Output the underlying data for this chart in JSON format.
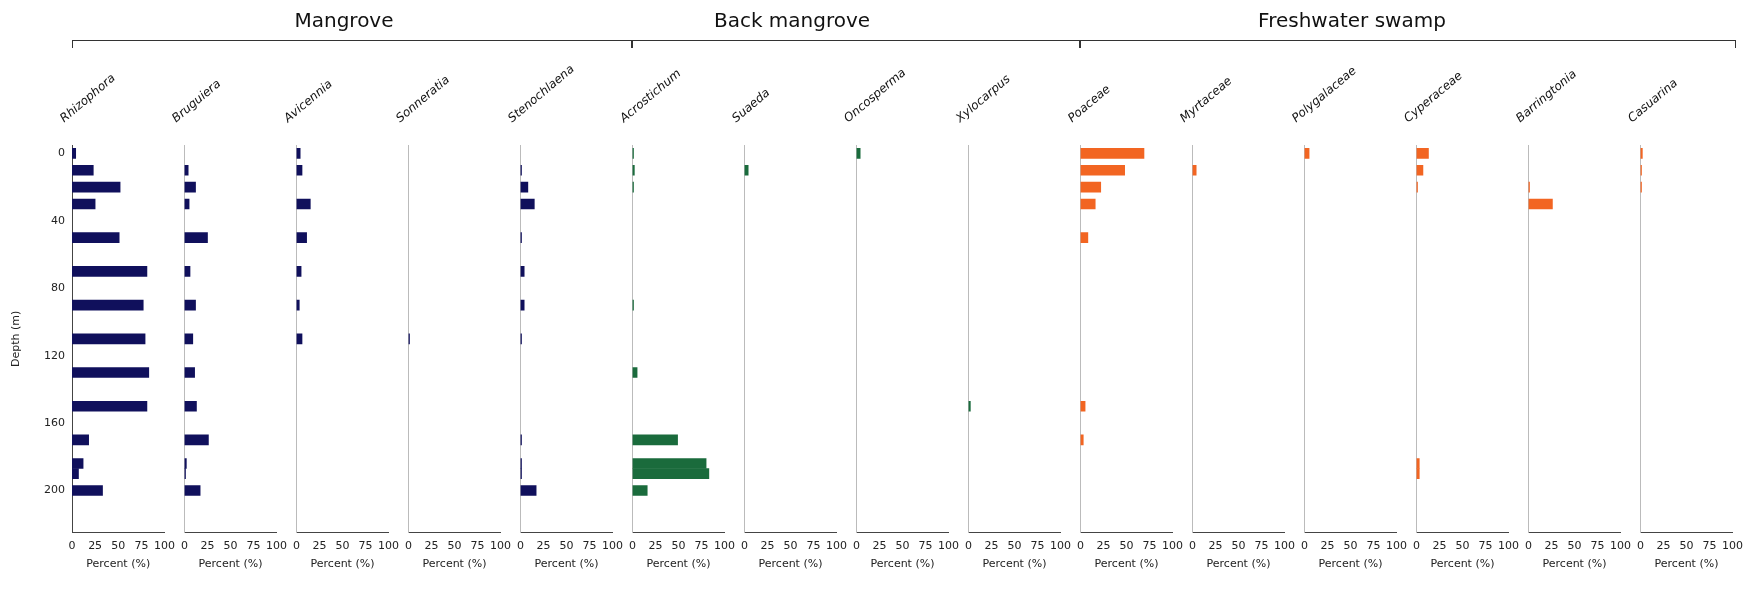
{
  "chart_data": [
    {
      "type": "bar",
      "orientation": "horizontal",
      "title": "Rhizophora",
      "xlabel": "Percent (%)",
      "ylabel": "Depth (m)",
      "x": [
        0,
        10,
        20,
        30,
        50,
        70,
        90,
        110,
        130,
        150,
        170,
        184,
        190,
        200
      ],
      "values": [
        4,
        23,
        52,
        25,
        51,
        81,
        77,
        79,
        83,
        81,
        18,
        12,
        7,
        33
      ],
      "color": "#10105c",
      "xlim": [
        0,
        100
      ],
      "xticks": [
        0,
        25,
        50,
        75,
        100
      ],
      "ylim": [
        225,
        -5
      ],
      "yticks": [
        0,
        40,
        80,
        120,
        160,
        200
      ]
    },
    {
      "type": "bar",
      "orientation": "horizontal",
      "title": "Bruguiera",
      "xlabel": "Percent (%)",
      "x": [
        10,
        20,
        30,
        50,
        70,
        90,
        110,
        130,
        150,
        170,
        184,
        190,
        200
      ],
      "values": [
        4,
        12,
        5,
        25,
        6,
        12,
        9,
        11,
        13,
        26,
        2,
        1,
        17
      ],
      "color": "#10105c",
      "xlim": [
        0,
        100
      ],
      "xticks": [
        0,
        25,
        50,
        75,
        100
      ],
      "ylim": [
        225,
        -5
      ],
      "yticks": [
        0,
        40,
        80,
        120,
        160,
        200
      ],
      "tick_labels": "x"
    },
    {
      "type": "bar",
      "orientation": "horizontal",
      "subtitle": "Mangrove",
      "title": "Avicennia",
      "xlabel": "Percent (%)",
      "x": [
        0,
        10,
        30,
        50,
        70,
        90,
        110
      ],
      "values": [
        4,
        6,
        15,
        11,
        5,
        3,
        6
      ],
      "color": "#10105c",
      "xlim": [
        0,
        100
      ],
      "xticks": [
        0,
        25,
        50,
        75,
        100
      ],
      "ylim": [
        225,
        -5
      ],
      "yticks": [
        0,
        40,
        80,
        120,
        160,
        200
      ],
      "tick_labels": "x"
    },
    {
      "type": "bar",
      "orientation": "horizontal",
      "title": "Sonneratia",
      "xlabel": "Percent (%)",
      "x": [
        110
      ],
      "values": [
        1
      ],
      "color": "#10105c",
      "xlim": [
        0,
        100
      ],
      "xticks": [
        0,
        25,
        50,
        75,
        100
      ],
      "ylim": [
        225,
        -5
      ],
      "yticks": [
        0,
        40,
        80,
        120,
        160,
        200
      ],
      "tick_labels": "x"
    },
    {
      "type": "bar",
      "orientation": "horizontal",
      "title": "Stenochlaena",
      "xlabel": "Percent (%)",
      "x": [
        10,
        20,
        30,
        50,
        70,
        90,
        110,
        170,
        184,
        190,
        200
      ],
      "values": [
        1,
        8,
        15,
        1,
        4,
        4,
        1,
        1,
        1,
        1,
        17
      ],
      "color": "#10105c",
      "xlim": [
        0,
        100
      ],
      "xticks": [
        0,
        25,
        50,
        75,
        100
      ],
      "ylim": [
        225,
        -5
      ],
      "yticks": [
        0,
        40,
        80,
        120,
        160,
        200
      ],
      "tick_labels": "x"
    },
    {
      "type": "bar",
      "orientation": "horizontal",
      "title": "Acrostichum",
      "xlabel": "Percent (%)",
      "x": [
        0,
        10,
        20,
        90,
        130,
        170,
        184,
        190,
        200
      ],
      "values": [
        1,
        2,
        1,
        1,
        5,
        49,
        80,
        83,
        16
      ],
      "color": "#1a6b3c",
      "xlim": [
        0,
        100
      ],
      "xticks": [
        0,
        25,
        50,
        75,
        100
      ],
      "ylim": [
        225,
        -5
      ],
      "yticks": [
        0,
        40,
        80,
        120,
        160,
        200
      ],
      "tick_labels": "x"
    },
    {
      "type": "bar",
      "orientation": "horizontal",
      "subtitle": "Back mangrove",
      "title": "Suaeda",
      "xlabel": "Percent (%)",
      "x": [
        10
      ],
      "values": [
        4
      ],
      "color": "#1a6b3c",
      "xlim": [
        0,
        100
      ],
      "xticks": [
        0,
        25,
        50,
        75,
        100
      ],
      "ylim": [
        225,
        -5
      ],
      "yticks": [
        0,
        40,
        80,
        120,
        160,
        200
      ],
      "tick_labels": "x"
    },
    {
      "type": "bar",
      "orientation": "horizontal",
      "title": "Oncosperma",
      "xlabel": "Percent (%)",
      "x": [
        0
      ],
      "values": [
        4
      ],
      "color": "#1a6b3c",
      "xlim": [
        0,
        100
      ],
      "xticks": [
        0,
        25,
        50,
        75,
        100
      ],
      "ylim": [
        225,
        -5
      ],
      "yticks": [
        0,
        40,
        80,
        120,
        160,
        200
      ],
      "tick_labels": "x"
    },
    {
      "type": "bar",
      "orientation": "horizontal",
      "title": "Xylocarpus",
      "xlabel": "Percent (%)",
      "x": [
        150
      ],
      "values": [
        2
      ],
      "color": "#1a6b3c",
      "xlim": [
        0,
        100
      ],
      "xticks": [
        0,
        25,
        50,
        75,
        100
      ],
      "ylim": [
        225,
        -5
      ],
      "yticks": [
        0,
        40,
        80,
        120,
        160,
        200
      ],
      "tick_labels": "x"
    },
    {
      "type": "bar",
      "orientation": "horizontal",
      "title": "Poaceae",
      "xlabel": "Percent (%)",
      "x": [
        0,
        10,
        20,
        30,
        50,
        150,
        170
      ],
      "values": [
        69,
        48,
        22,
        16,
        8,
        5,
        3
      ],
      "color": "#f26522",
      "xlim": [
        0,
        100
      ],
      "xticks": [
        0,
        25,
        50,
        75,
        100
      ],
      "ylim": [
        225,
        -5
      ],
      "yticks": [
        0,
        40,
        80,
        120,
        160,
        200
      ],
      "tick_labels": "x"
    },
    {
      "type": "bar",
      "orientation": "horizontal",
      "title": "Myrtaceae",
      "xlabel": "Percent (%)",
      "x": [
        10
      ],
      "values": [
        4
      ],
      "color": "#f26522",
      "xlim": [
        0,
        100
      ],
      "xticks": [
        0,
        25,
        50,
        75,
        100
      ],
      "ylim": [
        225,
        -5
      ],
      "yticks": [
        0,
        40,
        80,
        120,
        160,
        200
      ],
      "tick_labels": "x"
    },
    {
      "type": "bar",
      "orientation": "horizontal",
      "subtitle": "Freshwater swamp",
      "title": "Polygalaceae",
      "xlabel": "Percent (%)",
      "x": [
        0
      ],
      "values": [
        5
      ],
      "color": "#f26522",
      "xlim": [
        0,
        100
      ],
      "xticks": [
        0,
        25,
        50,
        75,
        100
      ],
      "ylim": [
        225,
        -5
      ],
      "yticks": [
        0,
        40,
        80,
        120,
        160,
        200
      ],
      "tick_labels": "x"
    },
    {
      "type": "bar",
      "orientation": "horizontal",
      "title": "Cyperaceae",
      "xlabel": "Percent (%)",
      "x": [
        0,
        10,
        20,
        184,
        190
      ],
      "values": [
        13,
        7,
        1,
        3,
        3
      ],
      "color": "#f26522",
      "xlim": [
        0,
        100
      ],
      "xticks": [
        0,
        25,
        50,
        75,
        100
      ],
      "ylim": [
        225,
        -5
      ],
      "yticks": [
        0,
        40,
        80,
        120,
        160,
        200
      ],
      "tick_labels": "x"
    },
    {
      "type": "bar",
      "orientation": "horizontal",
      "title": "Barringtonia",
      "xlabel": "Percent (%)",
      "x": [
        20,
        30
      ],
      "values": [
        1,
        26
      ],
      "color": "#f26522",
      "xlim": [
        0,
        100
      ],
      "xticks": [
        0,
        25,
        50,
        75,
        100
      ],
      "ylim": [
        225,
        -5
      ],
      "yticks": [
        0,
        40,
        80,
        120,
        160,
        200
      ],
      "tick_labels": "x"
    },
    {
      "type": "bar",
      "orientation": "horizontal",
      "title": "Casuarina",
      "xlabel": "Percent (%)",
      "x": [
        0,
        10,
        20
      ],
      "values": [
        2,
        1,
        1
      ],
      "color": "#f26522",
      "xlim": [
        0,
        100
      ],
      "xticks": [
        0,
        25,
        50,
        75,
        100
      ],
      "ylim": [
        225,
        -5
      ],
      "yticks": [
        0,
        40,
        80,
        120,
        160,
        200
      ],
      "tick_labels": "x"
    }
  ]
}
